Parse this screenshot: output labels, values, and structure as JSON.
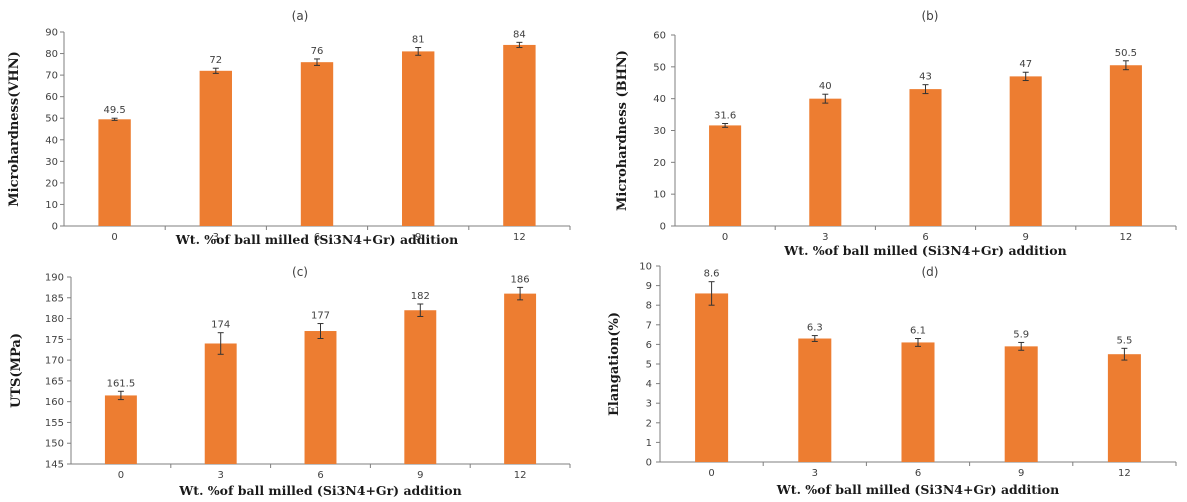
{
  "colors": {
    "bar": "#ED7D31",
    "axis": "#7f7f7f",
    "text": "#404040",
    "title": "#1a1a1a"
  },
  "chart_data": [
    {
      "type": "bar",
      "panel_label": "(a)",
      "categories": [
        "0",
        "3",
        "6",
        "9",
        "12"
      ],
      "values": [
        49.5,
        72,
        76,
        81,
        84
      ],
      "data_labels": [
        "49.5",
        "72",
        "76",
        "81",
        "84"
      ],
      "errors": [
        0.5,
        1.2,
        1.5,
        1.8,
        1.2
      ],
      "ylim": [
        0,
        90
      ],
      "yticks": [
        "0",
        "10",
        "20",
        "30",
        "40",
        "50",
        "60",
        "70",
        "80",
        "90"
      ],
      "xlabel": "Wt. %of ball milled (Si3N4+Gr) addition",
      "ylabel": "Microhardness(VHN)",
      "grid": false
    },
    {
      "type": "bar",
      "panel_label": "(b)",
      "categories": [
        "0",
        "3",
        "6",
        "9",
        "12"
      ],
      "values": [
        31.6,
        40,
        43,
        47,
        50.5
      ],
      "data_labels": [
        "31.6",
        "40",
        "43",
        "47",
        "50.5"
      ],
      "errors": [
        0.6,
        1.4,
        1.4,
        1.3,
        1.4
      ],
      "ylim": [
        0,
        60
      ],
      "yticks": [
        "0",
        "10",
        "20",
        "30",
        "40",
        "50",
        "60"
      ],
      "xlabel": "Wt. %of ball milled (Si3N4+Gr) addition",
      "ylabel": "Microhardness (BHN)",
      "grid": false
    },
    {
      "type": "bar",
      "panel_label": "(c)",
      "categories": [
        "0",
        "3",
        "6",
        "9",
        "12"
      ],
      "values": [
        161.5,
        174,
        177,
        182,
        186
      ],
      "data_labels": [
        "161.5",
        "174",
        "177",
        "182",
        "186"
      ],
      "errors": [
        1.0,
        2.6,
        1.8,
        1.5,
        1.5
      ],
      "ylim": [
        145,
        190
      ],
      "yticks": [
        "145",
        "150",
        "155",
        "160",
        "165",
        "170",
        "175",
        "180",
        "185",
        "190"
      ],
      "xlabel": "Wt. %of ball milled (Si3N4+Gr) addition",
      "ylabel": "UTS(MPa)",
      "grid": false
    },
    {
      "type": "bar",
      "panel_label": "(d)",
      "categories": [
        "0",
        "3",
        "6",
        "9",
        "12"
      ],
      "values": [
        8.6,
        6.3,
        6.1,
        5.9,
        5.5
      ],
      "data_labels": [
        "8.6",
        "6.3",
        "6.1",
        "5.9",
        "5.5"
      ],
      "errors": [
        0.6,
        0.15,
        0.2,
        0.2,
        0.3
      ],
      "ylim": [
        0,
        10
      ],
      "yticks": [
        "0",
        "1",
        "2",
        "3",
        "4",
        "5",
        "6",
        "7",
        "8",
        "9",
        "10"
      ],
      "xlabel": "Wt. %of ball milled (Si3N4+Gr) addition",
      "ylabel": "Elangation(%)",
      "grid": false
    }
  ]
}
